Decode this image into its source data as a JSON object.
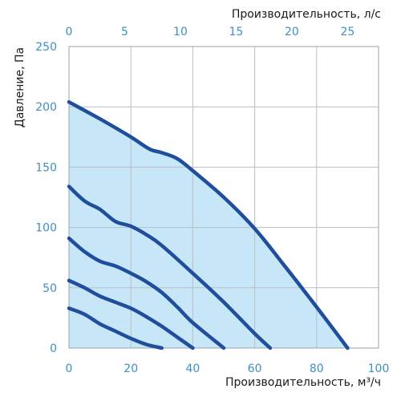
{
  "chart_data": {
    "type": "line",
    "title": "",
    "xlabel": "Производительность, м³/ч",
    "x2label": "Производительность, л/с",
    "ylabel": "Давление, Па",
    "xlim": [
      0,
      100
    ],
    "x2lim": [
      0,
      27.78
    ],
    "ylim": [
      0,
      250
    ],
    "x_ticks": [
      "0",
      "20",
      "40",
      "60",
      "80",
      "100"
    ],
    "x2_ticks": [
      "0",
      "5",
      "10",
      "15",
      "20",
      "25"
    ],
    "y_ticks": [
      "0",
      "50",
      "100",
      "150",
      "200",
      "250"
    ],
    "grid": true,
    "fill_color": "#c7e6f7",
    "line_color": "#1f4e9c",
    "tick_color": "#3d8fc4",
    "series": [
      {
        "x": [
          0,
          10,
          20,
          26,
          30,
          35,
          40,
          50,
          60,
          70,
          80,
          90,
          100
        ],
        "y": [
          204,
          190,
          175,
          165,
          162,
          157,
          147,
          125,
          99,
          67,
          34,
          0,
          0
        ]
      },
      {
        "x": [
          0,
          5,
          10,
          15,
          20,
          25,
          30,
          40,
          50,
          60,
          65,
          75
        ],
        "y": [
          134,
          122,
          115,
          105,
          101,
          94,
          85,
          62,
          38,
          12,
          0,
          0
        ]
      },
      {
        "x": [
          0,
          5,
          10,
          15,
          20,
          25,
          30,
          35,
          40,
          50,
          60
        ],
        "y": [
          91,
          80,
          72,
          68,
          62,
          55,
          46,
          34,
          21,
          0,
          0
        ]
      },
      {
        "x": [
          0,
          5,
          10,
          15,
          20,
          25,
          30,
          35,
          40,
          45
        ],
        "y": [
          56,
          50,
          43,
          38,
          33,
          26,
          18,
          9,
          0,
          0
        ]
      },
      {
        "x": [
          0,
          5,
          10,
          15,
          20,
          25,
          30
        ],
        "y": [
          33,
          28,
          20,
          14,
          8,
          3,
          0
        ]
      }
    ]
  }
}
